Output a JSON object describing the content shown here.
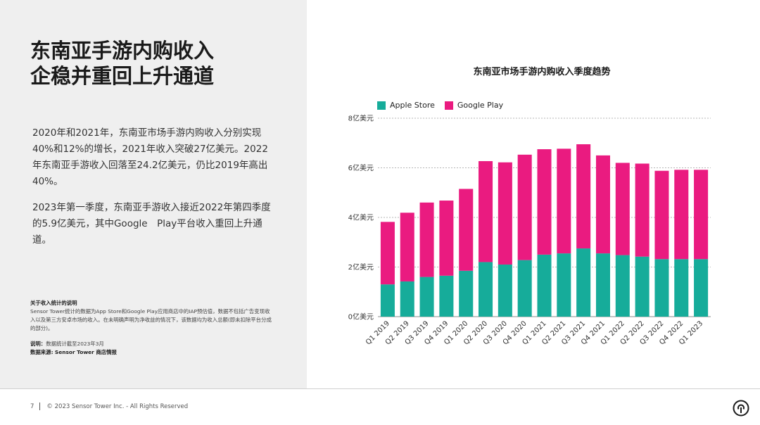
{
  "title_line1": "东南亚手游内购收入",
  "title_line2": "企稳并重回上升通道",
  "paragraph1": "2020年和2021年，东南亚市场手游内购收入分别实现40%和12%的增长，2021年收入突破27亿美元。2022年东南亚手游收入回落至24.2亿美元，仍比2019年高出40%。",
  "paragraph2": "2023年第一季度，东南亚手游收入接近2022年第四季度的5.9亿美元，其中Google　Play平台收入重回上升通道。",
  "notes": {
    "heading": "关于收入统计的说明",
    "body": "Sensor Tower统计的数据为App Store和Google Play应用商店中的IAP预估值，数据不包括广告变现收入以及第三方安卓市场的收入。在未明确声明为净收益的情况下，该数据均为收入总额(即未扣除平台分成的部分)。",
    "note_label": "说明：",
    "note_text": "数据统计截至2023年3月",
    "source_label": "数据来源:",
    "source_text": "Sensor Tower 商店情报"
  },
  "footer": {
    "page_number": "7",
    "copyright": "© 2023 Sensor Tower Inc. - All Rights Reserved"
  },
  "colors": {
    "apple": "#16ac9a",
    "google": "#ea1b80",
    "gridline": "#b5b5b5",
    "panel": "#efefef"
  },
  "chart_data": {
    "type": "bar",
    "stacked": true,
    "title": "东南亚市场手游内购收入季度趋势",
    "categories": [
      "Q1 2019",
      "Q2 2019",
      "Q3 2019",
      "Q4 2019",
      "Q1 2020",
      "Q2 2020",
      "Q3 2020",
      "Q4 2020",
      "Q1 2021",
      "Q2 2021",
      "Q3 2021",
      "Q4 2021",
      "Q1 2022",
      "Q2 2022",
      "Q3 2022",
      "Q4 2022",
      "Q1 2023"
    ],
    "series": [
      {
        "name": "Apple Store",
        "color": "#16ac9a",
        "values": [
          1.3,
          1.42,
          1.6,
          1.65,
          1.85,
          2.2,
          2.1,
          2.28,
          2.5,
          2.55,
          2.75,
          2.55,
          2.48,
          2.42,
          2.32,
          2.32,
          2.32
        ]
      },
      {
        "name": "Google Play",
        "color": "#ea1b80",
        "values": [
          2.52,
          2.77,
          3.0,
          3.03,
          3.3,
          4.07,
          4.12,
          4.25,
          4.25,
          4.22,
          4.2,
          3.95,
          3.72,
          3.75,
          3.56,
          3.6,
          3.6
        ]
      }
    ],
    "yticks": [
      "0亿美元",
      "2亿美元",
      "4亿美元",
      "6亿美元",
      "8亿美元"
    ],
    "ytick_values": [
      0,
      2,
      4,
      6,
      8
    ],
    "ylim": [
      0,
      8
    ],
    "grid": true,
    "legend_position": "top-left"
  }
}
